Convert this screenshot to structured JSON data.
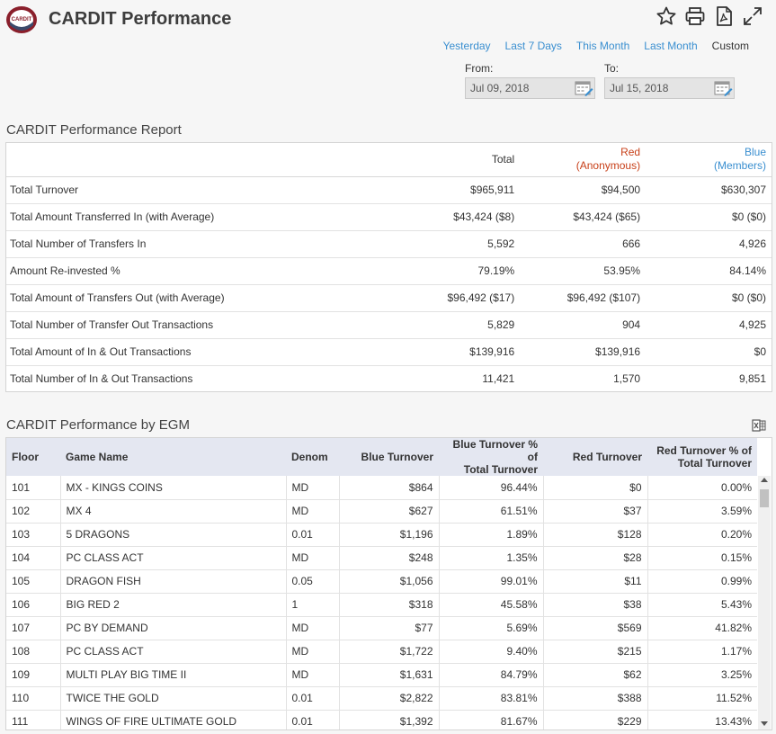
{
  "header": {
    "title": "CARDIT Performance",
    "logo_text": "CARDIT",
    "icons": [
      "star-icon",
      "print-icon",
      "pdf-icon",
      "expand-icon"
    ]
  },
  "range": {
    "yesterday": "Yesterday",
    "last7": "Last 7 Days",
    "this_month": "This Month",
    "last_month": "Last Month",
    "custom": "Custom"
  },
  "dates": {
    "from_label": "From:",
    "from_value": "Jul 09, 2018",
    "to_label": "To:",
    "to_value": "Jul 15, 2018"
  },
  "report": {
    "title": "CARDIT Performance Report",
    "col_total": "Total",
    "col_red": "Red",
    "col_red_sub": "(Anonymous)",
    "col_blue": "Blue",
    "col_blue_sub": "(Members)",
    "rows": [
      {
        "label": "Total Turnover",
        "total": "$965,911",
        "red": "$94,500",
        "blue": "$630,307"
      },
      {
        "label": "Total Amount Transferred In (with Average)",
        "total": "$43,424 ($8)",
        "red": "$43,424 ($65)",
        "blue": "$0 ($0)"
      },
      {
        "label": "Total Number of Transfers In",
        "total": "5,592",
        "red": "666",
        "blue": "4,926"
      },
      {
        "label": "Amount Re-invested %",
        "total": "79.19%",
        "red": "53.95%",
        "blue": "84.14%"
      },
      {
        "label": "Total Amount of Transfers Out (with Average)",
        "total": "$96,492 ($17)",
        "red": "$96,492 ($107)",
        "blue": "$0 ($0)"
      },
      {
        "label": "Total Number of Transfer Out Transactions",
        "total": "5,829",
        "red": "904",
        "blue": "4,925"
      },
      {
        "label": "Total Amount of In & Out Transactions",
        "total": "$139,916",
        "red": "$139,916",
        "blue": "$0"
      },
      {
        "label": "Total Number of In & Out Transactions",
        "total": "11,421",
        "red": "1,570",
        "blue": "9,851"
      }
    ]
  },
  "egm": {
    "title": "CARDIT Performance by EGM",
    "columns": {
      "floor": "Floor",
      "game": "Game Name",
      "denom": "Denom",
      "blue_turnover": "Blue Turnover",
      "blue_pct_1": "Blue Turnover % of",
      "blue_pct_2": "Total Turnover",
      "red_turnover": "Red Turnover",
      "red_pct_1": "Red Turnover % of",
      "red_pct_2": "Total Turnover"
    },
    "rows": [
      {
        "floor": "101",
        "game": "MX - KINGS COINS",
        "denom": "MD",
        "blue": "$864",
        "blue_pct": "96.44%",
        "red": "$0",
        "red_pct": "0.00%"
      },
      {
        "floor": "102",
        "game": "MX 4",
        "denom": "MD",
        "blue": "$627",
        "blue_pct": "61.51%",
        "red": "$37",
        "red_pct": "3.59%"
      },
      {
        "floor": "103",
        "game": "5 DRAGONS",
        "denom": "0.01",
        "blue": "$1,196",
        "blue_pct": "1.89%",
        "red": "$128",
        "red_pct": "0.20%"
      },
      {
        "floor": "104",
        "game": "PC CLASS ACT",
        "denom": "MD",
        "blue": "$248",
        "blue_pct": "1.35%",
        "red": "$28",
        "red_pct": "0.15%"
      },
      {
        "floor": "105",
        "game": "DRAGON FISH",
        "denom": "0.05",
        "blue": "$1,056",
        "blue_pct": "99.01%",
        "red": "$11",
        "red_pct": "0.99%"
      },
      {
        "floor": "106",
        "game": "BIG RED 2",
        "denom": "1",
        "blue": "$318",
        "blue_pct": "45.58%",
        "red": "$38",
        "red_pct": "5.43%"
      },
      {
        "floor": "107",
        "game": "PC BY DEMAND",
        "denom": "MD",
        "blue": "$77",
        "blue_pct": "5.69%",
        "red": "$569",
        "red_pct": "41.82%"
      },
      {
        "floor": "108",
        "game": "PC CLASS ACT",
        "denom": "MD",
        "blue": "$1,722",
        "blue_pct": "9.40%",
        "red": "$215",
        "red_pct": "1.17%"
      },
      {
        "floor": "109",
        "game": "MULTI PLAY BIG TIME II",
        "denom": "MD",
        "blue": "$1,631",
        "blue_pct": "84.79%",
        "red": "$62",
        "red_pct": "3.25%"
      },
      {
        "floor": "110",
        "game": "TWICE THE GOLD",
        "denom": "0.01",
        "blue": "$2,822",
        "blue_pct": "83.81%",
        "red": "$388",
        "red_pct": "11.52%"
      },
      {
        "floor": "111",
        "game": "WINGS OF FIRE ULTIMATE GOLD",
        "denom": "0.01",
        "blue": "$1,392",
        "blue_pct": "81.67%",
        "red": "$229",
        "red_pct": "13.43%"
      }
    ]
  }
}
